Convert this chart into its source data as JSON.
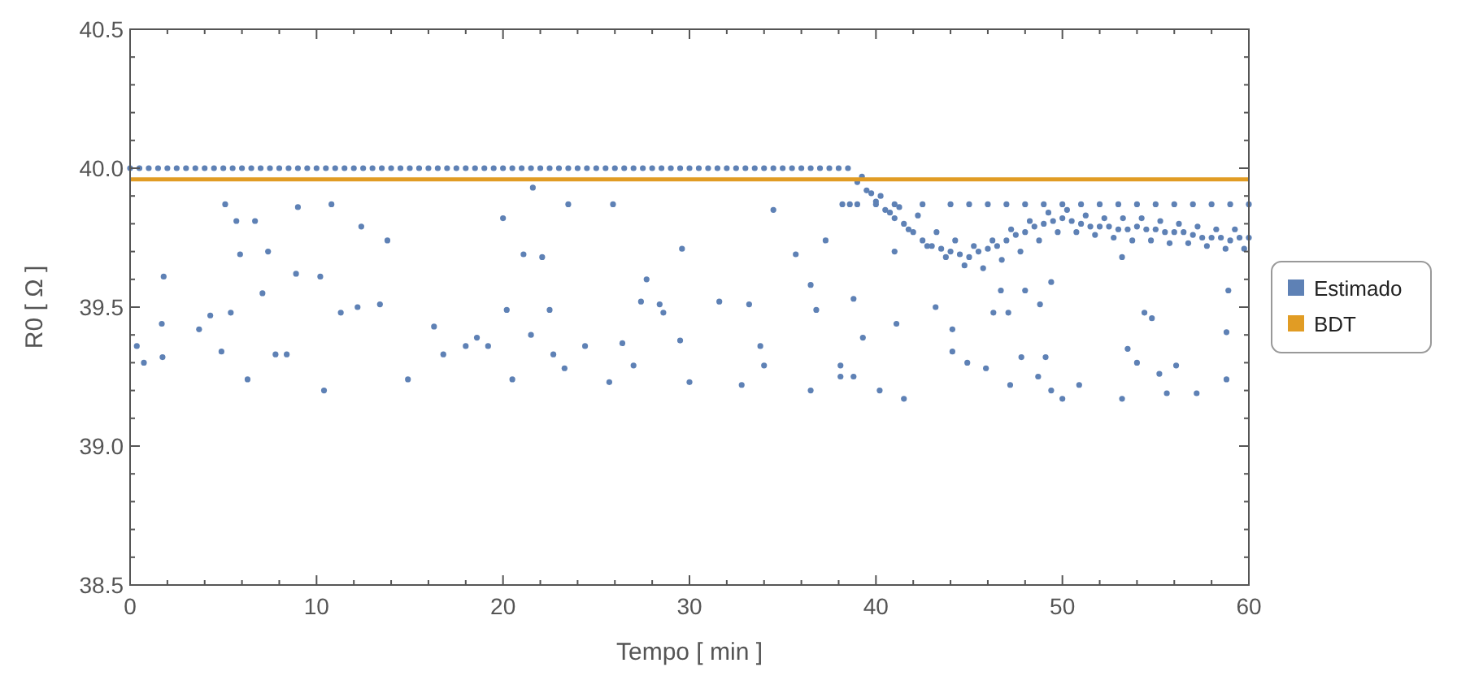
{
  "chart_data": {
    "type": "scatter",
    "xlabel": "Tempo [ min ]",
    "ylabel": "R0 [ Ω ]",
    "xlim": [
      0,
      60
    ],
    "ylim": [
      38.5,
      40.5
    ],
    "xticks": [
      0,
      10,
      20,
      30,
      40,
      50,
      60
    ],
    "yticks": [
      38.5,
      {
        "value": 39,
        "label": "39.0"
      },
      39.5,
      {
        "value": 40,
        "label": "40.0"
      },
      40.5
    ],
    "grid": false,
    "legend": "right",
    "marker": "circle",
    "series": [
      {
        "name": "Estimado",
        "color": "#5e81b5",
        "x": [
          0,
          0.5,
          1,
          1.5,
          2,
          2.5,
          3,
          3.5,
          4,
          4.5,
          5,
          5.5,
          6,
          6.5,
          7,
          7.5,
          8,
          8.5,
          9,
          9.5,
          10,
          10.5,
          11,
          11.5,
          12,
          12.5,
          13,
          13.5,
          14,
          14.5,
          15,
          15.5,
          16,
          16.5,
          17,
          17.5,
          18,
          18.5,
          19,
          19.5,
          20,
          20.5,
          21,
          21.5,
          22,
          22.5,
          23,
          23.5,
          24,
          24.5,
          25,
          25.5,
          26,
          26.5,
          27,
          27.5,
          28,
          28.5,
          29,
          29.5,
          30,
          30.5,
          31,
          31.5,
          32,
          32.5,
          33,
          33.5,
          34,
          34.5,
          35,
          35.5,
          36,
          36.5,
          37,
          37.5,
          38,
          38.5,
          39,
          39.5,
          40,
          40.5,
          41,
          41.5,
          42,
          42.5,
          43,
          43.5,
          44,
          44.5,
          45,
          45.5,
          46,
          46.5,
          47,
          47.5,
          48,
          48.5,
          49,
          49.5,
          50,
          50.5,
          51,
          51.5,
          52,
          52.5,
          53,
          53.5,
          54,
          54.5,
          55,
          55.5,
          56,
          56.5,
          57,
          57.5,
          58,
          58.5,
          59,
          59.5,
          60,
          39.25,
          40.25,
          41.25,
          42.25,
          43.25,
          44.25,
          45.25,
          46.25,
          47.25,
          48.25,
          49.25,
          50.25,
          51.25,
          52.25,
          53.25,
          54.25,
          55.25,
          56.25,
          57.25,
          58.25,
          59.25,
          39.75,
          40.75,
          41.75,
          42.75,
          43.75,
          44.75,
          45.75,
          46.75,
          47.75,
          48.75,
          49.75,
          50.75,
          51.75,
          52.75,
          53.75,
          54.75,
          55.75,
          56.75,
          57.75,
          58.75,
          59.75,
          38.2,
          38.6,
          39.0,
          40,
          41,
          42.5,
          44,
          45,
          46,
          47,
          48,
          49,
          50,
          51,
          52,
          53,
          54,
          55,
          56,
          57,
          58,
          59,
          60,
          0.36,
          0.74,
          1.8,
          1.7,
          1.74,
          5.1,
          5.7,
          5.9,
          6.7,
          6.3,
          7.4,
          7.1,
          8.9,
          9.0,
          10.8,
          10.2,
          10.4,
          12.4,
          13.8,
          14.9,
          4.3,
          3.7,
          5.4,
          7.8,
          11.3,
          12.2,
          13.4,
          16.3,
          18.6,
          16.8,
          4.9,
          8.4,
          20.0,
          21.6,
          21.1,
          22.1,
          23.5,
          25.9,
          29.6,
          27.7,
          27.4,
          28.4,
          31.6,
          33.2,
          34.5,
          35.7,
          36.5,
          37.3,
          36.8,
          38.8,
          36.5,
          32.8,
          30.0,
          25.7,
          23.3,
          20.5,
          22.7,
          24.4,
          26.4,
          29.5,
          33.8,
          38.1,
          20.2,
          22.5,
          28.6,
          18.0,
          19.2,
          21.5,
          27.0,
          34.0,
          38.8,
          41.1,
          39.3,
          38.1,
          40.2,
          41.5,
          41.0,
          43.2,
          44.1,
          44.1,
          44.9,
          45.9,
          46.3,
          47.1,
          46.7,
          48.0,
          48.8,
          49.4,
          47.8,
          49.1,
          48.7,
          49.4,
          50.0,
          50.9,
          47.2,
          53.2,
          53.5,
          54.4,
          54.8,
          54.0,
          55.2,
          56.1,
          55.6,
          57.2,
          53.2,
          58.9,
          58.8,
          58.8
        ],
        "values": [
          40.0,
          40.0,
          40.0,
          40.0,
          40.0,
          40.0,
          40.0,
          40.0,
          40.0,
          40.0,
          40.0,
          40.0,
          40.0,
          40.0,
          40.0,
          40.0,
          40.0,
          40.0,
          40.0,
          40.0,
          40.0,
          40.0,
          40.0,
          40.0,
          40.0,
          40.0,
          40.0,
          40.0,
          40.0,
          40.0,
          40.0,
          40.0,
          40.0,
          40.0,
          40.0,
          40.0,
          40.0,
          40.0,
          40.0,
          40.0,
          40.0,
          40.0,
          40.0,
          40.0,
          40.0,
          40.0,
          40.0,
          40.0,
          40.0,
          40.0,
          40.0,
          40.0,
          40.0,
          40.0,
          40.0,
          40.0,
          40.0,
          40.0,
          40.0,
          40.0,
          40.0,
          40.0,
          40.0,
          40.0,
          40.0,
          40.0,
          40.0,
          40.0,
          40.0,
          40.0,
          40.0,
          40.0,
          40.0,
          40.0,
          40.0,
          40.0,
          40.0,
          40.0,
          39.95,
          39.92,
          39.88,
          39.85,
          39.82,
          39.8,
          39.77,
          39.74,
          39.72,
          39.71,
          39.7,
          39.69,
          39.68,
          39.7,
          39.71,
          39.72,
          39.74,
          39.76,
          39.77,
          39.79,
          39.8,
          39.81,
          39.82,
          39.81,
          39.8,
          39.79,
          39.79,
          39.79,
          39.78,
          39.78,
          39.79,
          39.78,
          39.78,
          39.77,
          39.77,
          39.77,
          39.76,
          39.75,
          39.75,
          39.75,
          39.74,
          39.75,
          39.75,
          39.97,
          39.9,
          39.86,
          39.83,
          39.77,
          39.74,
          39.72,
          39.74,
          39.78,
          39.81,
          39.84,
          39.85,
          39.83,
          39.82,
          39.82,
          39.82,
          39.81,
          39.8,
          39.79,
          39.78,
          39.78,
          39.91,
          39.84,
          39.78,
          39.72,
          39.68,
          39.65,
          39.64,
          39.67,
          39.7,
          39.74,
          39.77,
          39.77,
          39.76,
          39.75,
          39.74,
          39.74,
          39.73,
          39.73,
          39.72,
          39.71,
          39.71,
          39.87,
          39.87,
          39.87,
          39.87,
          39.87,
          39.87,
          39.87,
          39.87,
          39.87,
          39.87,
          39.87,
          39.87,
          39.87,
          39.87,
          39.87,
          39.87,
          39.87,
          39.87,
          39.87,
          39.87,
          39.87,
          39.87,
          39.87,
          39.36,
          39.3,
          39.61,
          39.44,
          39.32,
          39.87,
          39.81,
          39.69,
          39.81,
          39.24,
          39.7,
          39.55,
          39.62,
          39.86,
          39.87,
          39.61,
          39.2,
          39.79,
          39.74,
          39.24,
          39.47,
          39.42,
          39.48,
          39.33,
          39.48,
          39.5,
          39.51,
          39.43,
          39.39,
          39.33,
          39.34,
          39.33,
          39.82,
          39.93,
          39.69,
          39.68,
          39.87,
          39.87,
          39.71,
          39.6,
          39.52,
          39.51,
          39.52,
          39.51,
          39.85,
          39.69,
          39.58,
          39.74,
          39.49,
          39.53,
          39.2,
          39.22,
          39.23,
          39.23,
          39.28,
          39.24,
          39.33,
          39.36,
          39.37,
          39.38,
          39.36,
          39.29,
          39.49,
          39.49,
          39.48,
          39.36,
          39.36,
          39.4,
          39.29,
          39.29,
          39.25,
          39.44,
          39.39,
          39.25,
          39.2,
          39.17,
          39.7,
          39.5,
          39.42,
          39.34,
          39.3,
          39.28,
          39.48,
          39.48,
          39.56,
          39.56,
          39.51,
          39.59,
          39.32,
          39.32,
          39.25,
          39.2,
          39.17,
          39.22,
          39.22,
          39.68,
          39.35,
          39.48,
          39.46,
          39.3,
          39.26,
          39.29,
          39.19,
          39.19,
          39.17,
          39.56,
          39.41,
          39.24
        ]
      },
      {
        "name": "BDT",
        "type": "line",
        "marker": "none",
        "color": "#e19c24",
        "x": [
          0,
          60
        ],
        "values": [
          39.96,
          39.96
        ]
      }
    ]
  }
}
